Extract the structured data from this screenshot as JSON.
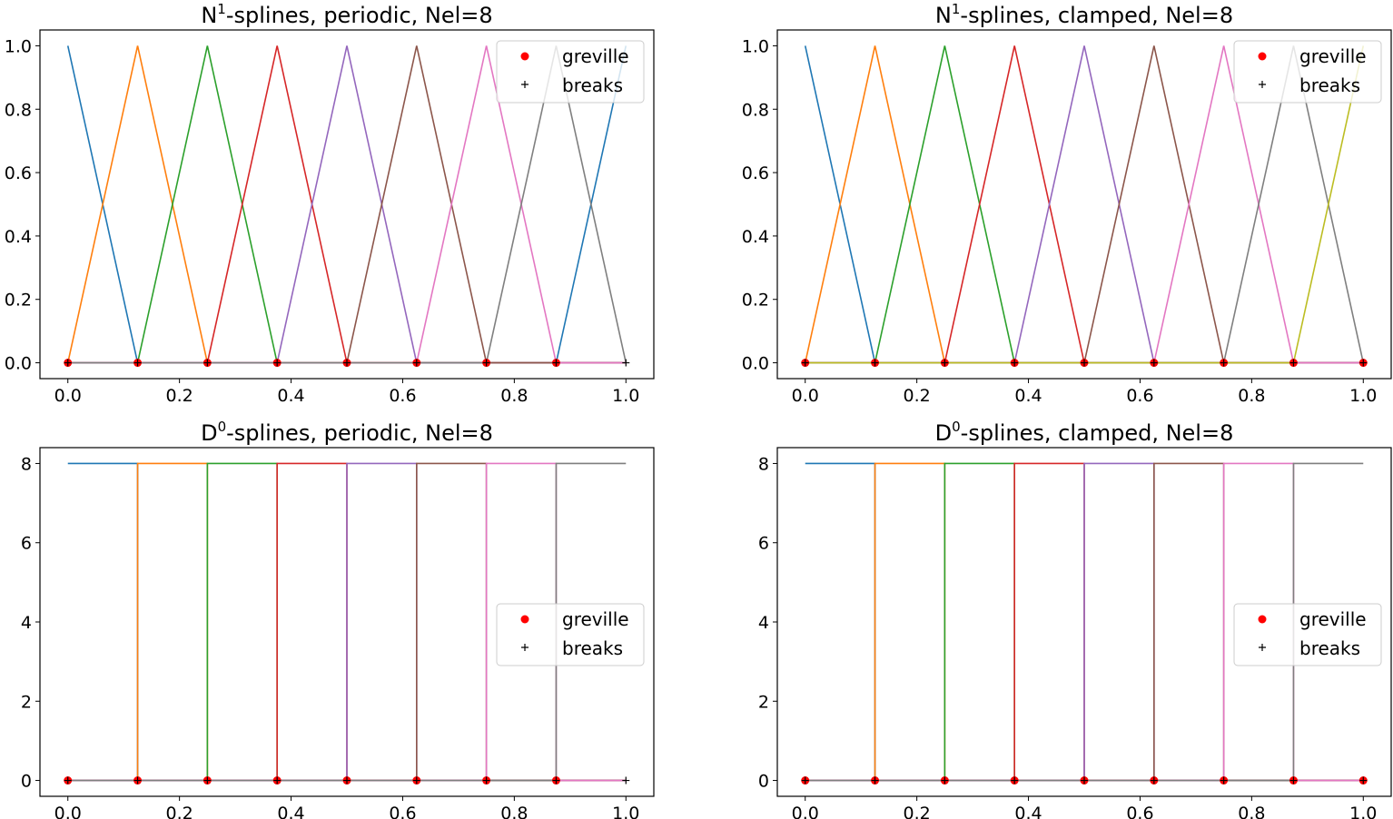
{
  "chart_data": [
    {
      "type": "line",
      "title": {
        "base": "N",
        "sup": "1",
        "rest": "-splines, periodic, Nel=8"
      },
      "xlim": [
        -0.05,
        1.05
      ],
      "ylim": [
        -0.05,
        1.05
      ],
      "xticks": [
        "0.0",
        "0.2",
        "0.4",
        "0.6",
        "0.8",
        "1.0"
      ],
      "yticks": [
        "0.0",
        "0.2",
        "0.4",
        "0.6",
        "0.8",
        "1.0"
      ],
      "legend": {
        "placement": "upper right",
        "entries": [
          "greville",
          "breaks"
        ]
      },
      "style": "linear",
      "knots": [
        0,
        0.125,
        0.25,
        0.375,
        0.5,
        0.625,
        0.75,
        0.875,
        1
      ],
      "series": [
        {
          "color": "#1f77b4",
          "y": [
            1,
            0,
            0,
            0,
            0,
            0,
            0,
            0,
            1
          ]
        },
        {
          "color": "#ff7f0e",
          "y": [
            0,
            1,
            0,
            0,
            0,
            0,
            0,
            0,
            0
          ]
        },
        {
          "color": "#2ca02c",
          "y": [
            0,
            0,
            1,
            0,
            0,
            0,
            0,
            0,
            0
          ]
        },
        {
          "color": "#d62728",
          "y": [
            0,
            0,
            0,
            1,
            0,
            0,
            0,
            0,
            0
          ]
        },
        {
          "color": "#9467bd",
          "y": [
            0,
            0,
            0,
            0,
            1,
            0,
            0,
            0,
            0
          ]
        },
        {
          "color": "#8c564b",
          "y": [
            0,
            0,
            0,
            0,
            0,
            1,
            0,
            0,
            0
          ]
        },
        {
          "color": "#e377c2",
          "y": [
            0,
            0,
            0,
            0,
            0,
            0,
            1,
            0,
            0
          ]
        },
        {
          "color": "#7f7f7f",
          "y": [
            0,
            0,
            0,
            0,
            0,
            0,
            0,
            1,
            0
          ]
        }
      ],
      "greville": [
        0,
        0.125,
        0.25,
        0.375,
        0.5,
        0.625,
        0.75,
        0.875
      ],
      "breaks": [
        0,
        0.125,
        0.25,
        0.375,
        0.5,
        0.625,
        0.75,
        0.875,
        1
      ]
    },
    {
      "type": "line",
      "title": {
        "base": "N",
        "sup": "1",
        "rest": "-splines, clamped, Nel=8"
      },
      "xlim": [
        -0.05,
        1.05
      ],
      "ylim": [
        -0.05,
        1.05
      ],
      "xticks": [
        "0.0",
        "0.2",
        "0.4",
        "0.6",
        "0.8",
        "1.0"
      ],
      "yticks": [
        "0.0",
        "0.2",
        "0.4",
        "0.6",
        "0.8",
        "1.0"
      ],
      "legend": {
        "placement": "upper right",
        "entries": [
          "greville",
          "breaks"
        ]
      },
      "style": "linear",
      "knots": [
        0,
        0.125,
        0.25,
        0.375,
        0.5,
        0.625,
        0.75,
        0.875,
        1
      ],
      "series": [
        {
          "color": "#1f77b4",
          "y": [
            1,
            0,
            0,
            0,
            0,
            0,
            0,
            0,
            0
          ]
        },
        {
          "color": "#ff7f0e",
          "y": [
            0,
            1,
            0,
            0,
            0,
            0,
            0,
            0,
            0
          ]
        },
        {
          "color": "#2ca02c",
          "y": [
            0,
            0,
            1,
            0,
            0,
            0,
            0,
            0,
            0
          ]
        },
        {
          "color": "#d62728",
          "y": [
            0,
            0,
            0,
            1,
            0,
            0,
            0,
            0,
            0
          ]
        },
        {
          "color": "#9467bd",
          "y": [
            0,
            0,
            0,
            0,
            1,
            0,
            0,
            0,
            0
          ]
        },
        {
          "color": "#8c564b",
          "y": [
            0,
            0,
            0,
            0,
            0,
            1,
            0,
            0,
            0
          ]
        },
        {
          "color": "#e377c2",
          "y": [
            0,
            0,
            0,
            0,
            0,
            0,
            1,
            0,
            0
          ]
        },
        {
          "color": "#7f7f7f",
          "y": [
            0,
            0,
            0,
            0,
            0,
            0,
            0,
            1,
            0
          ]
        },
        {
          "color": "#bcbd22",
          "y": [
            0,
            0,
            0,
            0,
            0,
            0,
            0,
            0,
            1
          ]
        }
      ],
      "greville": [
        0,
        0.125,
        0.25,
        0.375,
        0.5,
        0.625,
        0.75,
        0.875,
        1
      ],
      "breaks": [
        0,
        0.125,
        0.25,
        0.375,
        0.5,
        0.625,
        0.75,
        0.875,
        1
      ]
    },
    {
      "type": "line",
      "title": {
        "base": "D",
        "sup": "0",
        "rest": "-splines, periodic, Nel=8"
      },
      "xlim": [
        -0.05,
        1.05
      ],
      "ylim": [
        -0.4,
        8.4
      ],
      "xticks": [
        "0.0",
        "0.2",
        "0.4",
        "0.6",
        "0.8",
        "1.0"
      ],
      "yticks": [
        "0",
        "2",
        "4",
        "6",
        "8"
      ],
      "legend": {
        "placement": "center right",
        "entries": [
          "greville",
          "breaks"
        ]
      },
      "style": "step",
      "knots": [
        0,
        0.125,
        0.25,
        0.375,
        0.5,
        0.625,
        0.75,
        0.875,
        1
      ],
      "series": [
        {
          "color": "#1f77b4",
          "y": [
            8,
            0,
            0,
            0,
            0,
            0,
            0,
            0
          ]
        },
        {
          "color": "#ff7f0e",
          "y": [
            0,
            8,
            0,
            0,
            0,
            0,
            0,
            0
          ]
        },
        {
          "color": "#2ca02c",
          "y": [
            0,
            0,
            8,
            0,
            0,
            0,
            0,
            0
          ]
        },
        {
          "color": "#d62728",
          "y": [
            0,
            0,
            0,
            8,
            0,
            0,
            0,
            0
          ]
        },
        {
          "color": "#9467bd",
          "y": [
            0,
            0,
            0,
            0,
            8,
            0,
            0,
            0
          ]
        },
        {
          "color": "#8c564b",
          "y": [
            0,
            0,
            0,
            0,
            0,
            8,
            0,
            0
          ]
        },
        {
          "color": "#e377c2",
          "y": [
            0,
            0,
            0,
            0,
            0,
            0,
            8,
            0
          ]
        },
        {
          "color": "#7f7f7f",
          "y": [
            0,
            0,
            0,
            0,
            0,
            0,
            0,
            8
          ]
        }
      ],
      "greville": [
        0,
        0.125,
        0.25,
        0.375,
        0.5,
        0.625,
        0.75,
        0.875
      ],
      "breaks": [
        0,
        0.125,
        0.25,
        0.375,
        0.5,
        0.625,
        0.75,
        0.875,
        1
      ]
    },
    {
      "type": "line",
      "title": {
        "base": "D",
        "sup": "0",
        "rest": "-splines, clamped, Nel=8"
      },
      "xlim": [
        -0.05,
        1.05
      ],
      "ylim": [
        -0.4,
        8.4
      ],
      "xticks": [
        "0.0",
        "0.2",
        "0.4",
        "0.6",
        "0.8",
        "1.0"
      ],
      "yticks": [
        "0",
        "2",
        "4",
        "6",
        "8"
      ],
      "legend": {
        "placement": "center right",
        "entries": [
          "greville",
          "breaks"
        ]
      },
      "style": "step",
      "knots": [
        0,
        0.125,
        0.25,
        0.375,
        0.5,
        0.625,
        0.75,
        0.875,
        1
      ],
      "series": [
        {
          "color": "#1f77b4",
          "y": [
            8,
            0,
            0,
            0,
            0,
            0,
            0,
            0
          ]
        },
        {
          "color": "#ff7f0e",
          "y": [
            0,
            8,
            0,
            0,
            0,
            0,
            0,
            0
          ]
        },
        {
          "color": "#2ca02c",
          "y": [
            0,
            0,
            8,
            0,
            0,
            0,
            0,
            0
          ]
        },
        {
          "color": "#d62728",
          "y": [
            0,
            0,
            0,
            8,
            0,
            0,
            0,
            0
          ]
        },
        {
          "color": "#9467bd",
          "y": [
            0,
            0,
            0,
            0,
            8,
            0,
            0,
            0
          ]
        },
        {
          "color": "#8c564b",
          "y": [
            0,
            0,
            0,
            0,
            0,
            8,
            0,
            0
          ]
        },
        {
          "color": "#e377c2",
          "y": [
            0,
            0,
            0,
            0,
            0,
            0,
            8,
            0
          ]
        },
        {
          "color": "#7f7f7f",
          "y": [
            0,
            0,
            0,
            0,
            0,
            0,
            0,
            8
          ]
        }
      ],
      "greville": [
        0,
        0.125,
        0.25,
        0.375,
        0.5,
        0.625,
        0.75,
        0.875,
        1
      ],
      "breaks": [
        0,
        0.125,
        0.25,
        0.375,
        0.5,
        0.625,
        0.75,
        0.875,
        1
      ]
    }
  ]
}
